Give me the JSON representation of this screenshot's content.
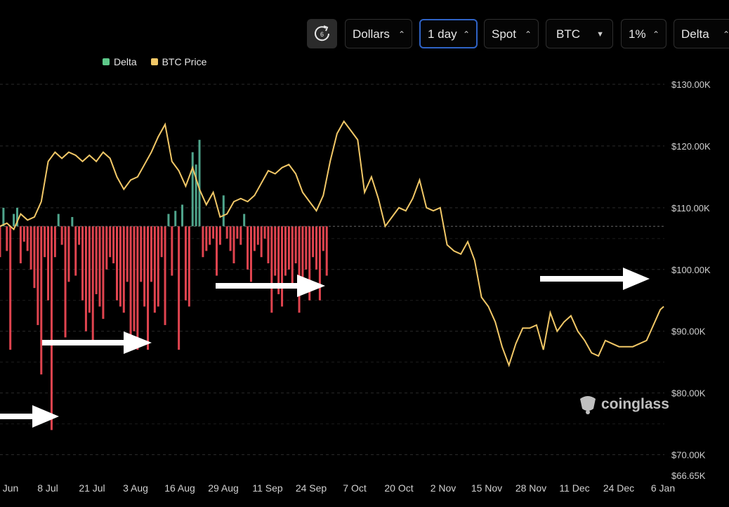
{
  "toolbar": {
    "refresh_badge": "6",
    "currency": "Dollars",
    "interval": "1 day",
    "market": "Spot",
    "asset": "BTC",
    "range": "1%",
    "metric": "Delta"
  },
  "watermark": "coinglass",
  "colors": {
    "positive": "#4fa58c",
    "negative": "#e0444f",
    "price": "#f2c867",
    "background": "#000000"
  },
  "chart_data": {
    "type": "bar+line",
    "legend": [
      {
        "name": "Delta",
        "color": "#5dc889"
      },
      {
        "name": "BTC Price",
        "color": "#f2c867"
      }
    ],
    "x_ticks": [
      "Jun",
      "8 Jul",
      "21 Jul",
      "3 Aug",
      "16 Aug",
      "29 Aug",
      "11 Sep",
      "24 Sep",
      "7 Oct",
      "20 Oct",
      "2 Nov",
      "15 Nov",
      "28 Nov",
      "11 Dec",
      "24 Dec",
      "6 Jan"
    ],
    "y_ticks": [
      "$130.00K",
      "$120.00K",
      "$110.00K",
      "$100.00K",
      "$90.00K",
      "$80.00K",
      "$70.00K",
      "$66.65K"
    ],
    "y_tick_values": [
      130000,
      120000,
      110000,
      100000,
      90000,
      80000,
      70000,
      66650
    ],
    "ylim": [
      66650,
      131000
    ],
    "x_range": [
      "2025-06-27",
      "2026-01-07"
    ],
    "grid": "horizontal dashed",
    "series": [
      {
        "name": "BTC Price",
        "points": [
          [
            "2025-06-27",
            107000
          ],
          [
            "2025-06-29",
            107500
          ],
          [
            "2025-07-01",
            106500
          ],
          [
            "2025-07-03",
            109000
          ],
          [
            "2025-07-05",
            108000
          ],
          [
            "2025-07-07",
            108500
          ],
          [
            "2025-07-09",
            111000
          ],
          [
            "2025-07-11",
            117500
          ],
          [
            "2025-07-13",
            119000
          ],
          [
            "2025-07-15",
            118000
          ],
          [
            "2025-07-17",
            119000
          ],
          [
            "2025-07-19",
            118500
          ],
          [
            "2025-07-21",
            117500
          ],
          [
            "2025-07-23",
            118500
          ],
          [
            "2025-07-25",
            117500
          ],
          [
            "2025-07-27",
            119000
          ],
          [
            "2025-07-29",
            118000
          ],
          [
            "2025-07-31",
            115000
          ],
          [
            "2025-08-02",
            113000
          ],
          [
            "2025-08-04",
            114500
          ],
          [
            "2025-08-06",
            115000
          ],
          [
            "2025-08-08",
            117000
          ],
          [
            "2025-08-10",
            119000
          ],
          [
            "2025-08-12",
            121500
          ],
          [
            "2025-08-14",
            123500
          ],
          [
            "2025-08-16",
            117500
          ],
          [
            "2025-08-18",
            116000
          ],
          [
            "2025-08-20",
            113500
          ],
          [
            "2025-08-22",
            116500
          ],
          [
            "2025-08-24",
            113000
          ],
          [
            "2025-08-26",
            110500
          ],
          [
            "2025-08-28",
            112500
          ],
          [
            "2025-08-30",
            108500
          ],
          [
            "2025-09-01",
            109000
          ],
          [
            "2025-09-03",
            111000
          ],
          [
            "2025-09-05",
            111500
          ],
          [
            "2025-09-07",
            111000
          ],
          [
            "2025-09-09",
            112000
          ],
          [
            "2025-09-11",
            114000
          ],
          [
            "2025-09-13",
            116000
          ],
          [
            "2025-09-15",
            115500
          ],
          [
            "2025-09-17",
            116500
          ],
          [
            "2025-09-19",
            117000
          ],
          [
            "2025-09-21",
            115500
          ],
          [
            "2025-09-23",
            112500
          ],
          [
            "2025-09-25",
            111000
          ],
          [
            "2025-09-27",
            109500
          ],
          [
            "2025-09-29",
            112000
          ],
          [
            "2025-10-01",
            117500
          ],
          [
            "2025-10-03",
            122000
          ],
          [
            "2025-10-05",
            124000
          ],
          [
            "2025-10-07",
            122500
          ],
          [
            "2025-10-09",
            121000
          ],
          [
            "2025-10-11",
            112500
          ],
          [
            "2025-10-13",
            115000
          ],
          [
            "2025-10-15",
            111500
          ],
          [
            "2025-10-17",
            107000
          ],
          [
            "2025-10-19",
            108500
          ],
          [
            "2025-10-21",
            110000
          ],
          [
            "2025-10-23",
            109500
          ],
          [
            "2025-10-25",
            111500
          ],
          [
            "2025-10-27",
            114500
          ],
          [
            "2025-10-29",
            110000
          ],
          [
            "2025-10-31",
            109500
          ],
          [
            "2025-11-02",
            110000
          ],
          [
            "2025-11-04",
            104000
          ],
          [
            "2025-11-06",
            103000
          ],
          [
            "2025-11-08",
            102500
          ],
          [
            "2025-11-10",
            104500
          ],
          [
            "2025-11-12",
            101500
          ],
          [
            "2025-11-14",
            95500
          ],
          [
            "2025-11-16",
            94000
          ],
          [
            "2025-11-18",
            91500
          ],
          [
            "2025-11-20",
            87500
          ],
          [
            "2025-11-22",
            84500
          ],
          [
            "2025-11-24",
            88000
          ],
          [
            "2025-11-26",
            90500
          ],
          [
            "2025-11-28",
            90500
          ],
          [
            "2025-11-30",
            91000
          ],
          [
            "2025-12-02",
            87000
          ],
          [
            "2025-12-04",
            93000
          ],
          [
            "2025-12-06",
            90000
          ],
          [
            "2025-12-08",
            91500
          ],
          [
            "2025-12-10",
            92500
          ],
          [
            "2025-12-12",
            90000
          ],
          [
            "2025-12-14",
            88500
          ],
          [
            "2025-12-16",
            86500
          ],
          [
            "2025-12-18",
            86000
          ],
          [
            "2025-12-20",
            88500
          ],
          [
            "2025-12-22",
            88000
          ],
          [
            "2025-12-24",
            87500
          ],
          [
            "2025-12-26",
            87500
          ],
          [
            "2025-12-28",
            87500
          ],
          [
            "2025-12-30",
            88000
          ],
          [
            "2026-01-01",
            88500
          ],
          [
            "2026-01-03",
            91000
          ],
          [
            "2026-01-05",
            93500
          ],
          [
            "2026-01-06",
            94000
          ]
        ]
      },
      {
        "name": "Delta",
        "baseline": 107000,
        "bars": [
          [
            "2025-06-27",
            -5000
          ],
          [
            "2025-06-28",
            3000
          ],
          [
            "2025-06-29",
            -4000
          ],
          [
            "2025-06-30",
            -20000
          ],
          [
            "2025-07-01",
            2000
          ],
          [
            "2025-07-02",
            3000
          ],
          [
            "2025-07-03",
            -6000
          ],
          [
            "2025-07-04",
            -2500
          ],
          [
            "2025-07-05",
            -4000
          ],
          [
            "2025-07-06",
            -7000
          ],
          [
            "2025-07-07",
            -10000
          ],
          [
            "2025-07-08",
            -16000
          ],
          [
            "2025-07-09",
            -24000
          ],
          [
            "2025-07-10",
            -5000
          ],
          [
            "2025-07-11",
            -12000
          ],
          [
            "2025-07-12",
            -33000
          ],
          [
            "2025-07-13",
            -5000
          ],
          [
            "2025-07-14",
            2000
          ],
          [
            "2025-07-15",
            -3000
          ],
          [
            "2025-07-16",
            -18000
          ],
          [
            "2025-07-17",
            -9000
          ],
          [
            "2025-07-18",
            1500
          ],
          [
            "2025-07-19",
            -8000
          ],
          [
            "2025-07-20",
            -3000
          ],
          [
            "2025-07-21",
            -12000
          ],
          [
            "2025-07-22",
            -17000
          ],
          [
            "2025-07-23",
            -14000
          ],
          [
            "2025-07-24",
            -19000
          ],
          [
            "2025-07-25",
            -11000
          ],
          [
            "2025-07-26",
            -13000
          ],
          [
            "2025-07-27",
            -15000
          ],
          [
            "2025-07-28",
            -7000
          ],
          [
            "2025-07-29",
            -5000
          ],
          [
            "2025-07-30",
            -6000
          ],
          [
            "2025-07-31",
            -12000
          ],
          [
            "2025-08-01",
            -13000
          ],
          [
            "2025-08-02",
            -14000
          ],
          [
            "2025-08-03",
            -9000
          ],
          [
            "2025-08-04",
            -18000
          ],
          [
            "2025-08-05",
            -17000
          ],
          [
            "2025-08-06",
            -20000
          ],
          [
            "2025-08-07",
            -9000
          ],
          [
            "2025-08-08",
            -13000
          ],
          [
            "2025-08-09",
            -20000
          ],
          [
            "2025-08-10",
            -9000
          ],
          [
            "2025-08-11",
            -14000
          ],
          [
            "2025-08-12",
            -13000
          ],
          [
            "2025-08-13",
            -5000
          ],
          [
            "2025-08-14",
            -16000
          ],
          [
            "2025-08-15",
            2000
          ],
          [
            "2025-08-16",
            -8000
          ],
          [
            "2025-08-17",
            2500
          ],
          [
            "2025-08-18",
            -20000
          ],
          [
            "2025-08-19",
            3500
          ],
          [
            "2025-08-20",
            -12000
          ],
          [
            "2025-08-21",
            -13000
          ],
          [
            "2025-08-22",
            12000
          ],
          [
            "2025-08-23",
            10000
          ],
          [
            "2025-08-24",
            14000
          ],
          [
            "2025-08-25",
            -5000
          ],
          [
            "2025-08-26",
            -4000
          ],
          [
            "2025-08-27",
            -3000
          ],
          [
            "2025-08-28",
            -2000
          ],
          [
            "2025-08-29",
            -8000
          ],
          [
            "2025-08-30",
            -3000
          ],
          [
            "2025-08-31",
            5000
          ],
          [
            "2025-09-01",
            -2000
          ],
          [
            "2025-09-02",
            -4000
          ],
          [
            "2025-09-03",
            -6000
          ],
          [
            "2025-09-04",
            -2000
          ],
          [
            "2025-09-05",
            -3000
          ],
          [
            "2025-09-06",
            2000
          ],
          [
            "2025-09-07",
            -7000
          ],
          [
            "2025-09-08",
            -9000
          ],
          [
            "2025-09-09",
            -4000
          ],
          [
            "2025-09-10",
            -3000
          ],
          [
            "2025-09-11",
            -5000
          ],
          [
            "2025-09-12",
            -2000
          ],
          [
            "2025-09-13",
            -6000
          ],
          [
            "2025-09-14",
            -14000
          ],
          [
            "2025-09-15",
            -8000
          ],
          [
            "2025-09-16",
            -11000
          ],
          [
            "2025-09-17",
            -13000
          ],
          [
            "2025-09-18",
            -8000
          ],
          [
            "2025-09-19",
            -7000
          ],
          [
            "2025-09-20",
            -10000
          ],
          [
            "2025-09-21",
            -6000
          ],
          [
            "2025-09-22",
            -14000
          ],
          [
            "2025-09-23",
            -11000
          ],
          [
            "2025-09-24",
            -7000
          ],
          [
            "2025-09-25",
            -12000
          ],
          [
            "2025-09-26",
            -5000
          ],
          [
            "2025-09-27",
            -7000
          ],
          [
            "2025-09-28",
            -12000
          ],
          [
            "2025-09-29",
            -4000
          ],
          [
            "2025-09-30",
            -8000
          ]
        ]
      }
    ]
  }
}
